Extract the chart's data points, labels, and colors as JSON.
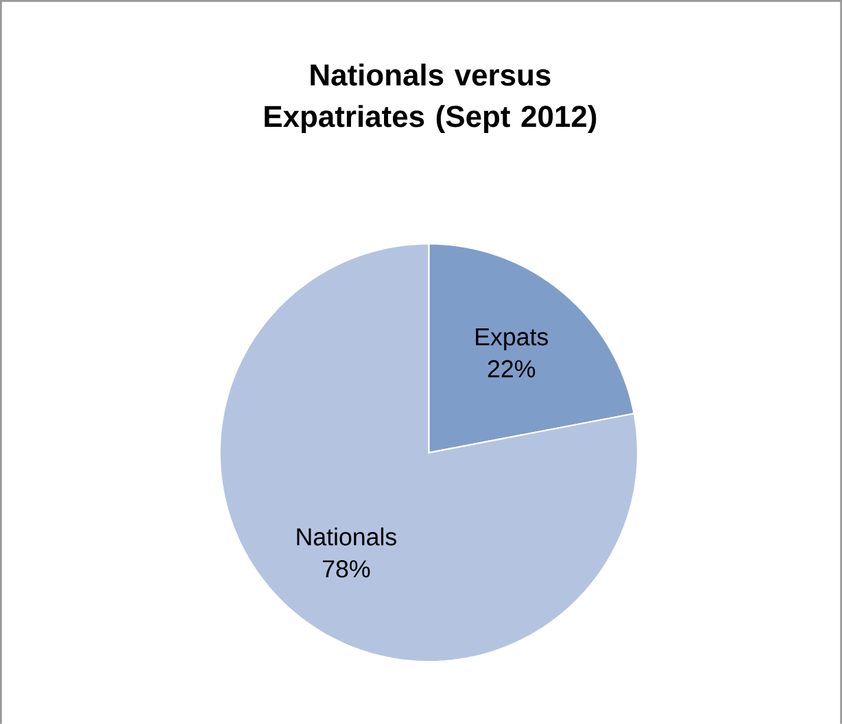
{
  "chart_data": {
    "type": "pie",
    "title": "Nationals  versus Expatriates (Sept 2012)",
    "categories": [
      "Expats",
      "Nationals"
    ],
    "values": [
      22,
      78
    ],
    "colors": [
      "#7f9dc9",
      "#b4c4e0"
    ],
    "value_labels": [
      "22%",
      "78%"
    ]
  }
}
